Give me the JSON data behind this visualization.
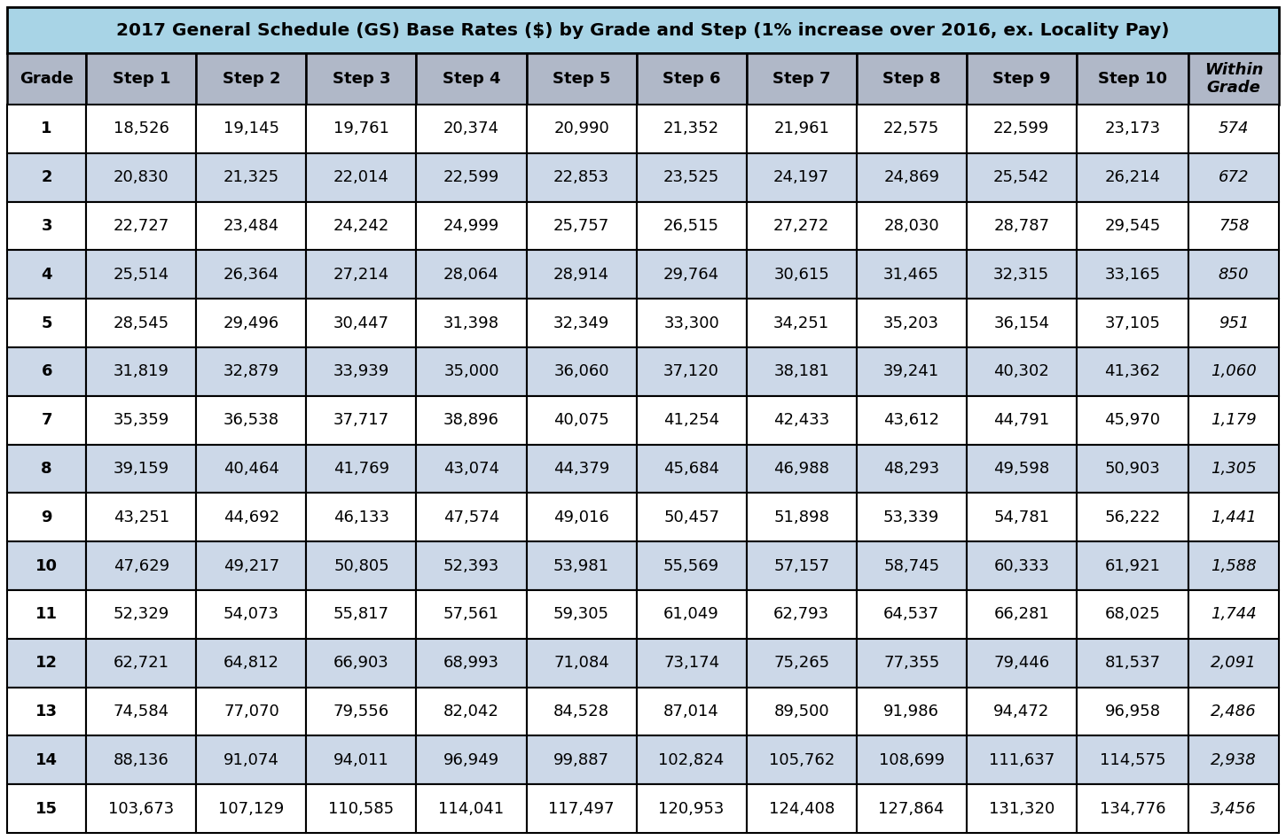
{
  "title": "2017 General Schedule (GS) Base Rates ($) by Grade and Step (1% increase over 2016, ex. Locality Pay)",
  "headers": [
    "Grade",
    "Step 1",
    "Step 2",
    "Step 3",
    "Step 4",
    "Step 5",
    "Step 6",
    "Step 7",
    "Step 8",
    "Step 9",
    "Step 10",
    "Within\nGrade"
  ],
  "rows": [
    [
      1,
      18526,
      19145,
      19761,
      20374,
      20990,
      21352,
      21961,
      22575,
      22599,
      23173,
      574
    ],
    [
      2,
      20830,
      21325,
      22014,
      22599,
      22853,
      23525,
      24197,
      24869,
      25542,
      26214,
      672
    ],
    [
      3,
      22727,
      23484,
      24242,
      24999,
      25757,
      26515,
      27272,
      28030,
      28787,
      29545,
      758
    ],
    [
      4,
      25514,
      26364,
      27214,
      28064,
      28914,
      29764,
      30615,
      31465,
      32315,
      33165,
      850
    ],
    [
      5,
      28545,
      29496,
      30447,
      31398,
      32349,
      33300,
      34251,
      35203,
      36154,
      37105,
      951
    ],
    [
      6,
      31819,
      32879,
      33939,
      35000,
      36060,
      37120,
      38181,
      39241,
      40302,
      41362,
      1060
    ],
    [
      7,
      35359,
      36538,
      37717,
      38896,
      40075,
      41254,
      42433,
      43612,
      44791,
      45970,
      1179
    ],
    [
      8,
      39159,
      40464,
      41769,
      43074,
      44379,
      45684,
      46988,
      48293,
      49598,
      50903,
      1305
    ],
    [
      9,
      43251,
      44692,
      46133,
      47574,
      49016,
      50457,
      51898,
      53339,
      54781,
      56222,
      1441
    ],
    [
      10,
      47629,
      49217,
      50805,
      52393,
      53981,
      55569,
      57157,
      58745,
      60333,
      61921,
      1588
    ],
    [
      11,
      52329,
      54073,
      55817,
      57561,
      59305,
      61049,
      62793,
      64537,
      66281,
      68025,
      1744
    ],
    [
      12,
      62721,
      64812,
      66903,
      68993,
      71084,
      73174,
      75265,
      77355,
      79446,
      81537,
      2091
    ],
    [
      13,
      74584,
      77070,
      79556,
      82042,
      84528,
      87014,
      89500,
      91986,
      94472,
      96958,
      2486
    ],
    [
      14,
      88136,
      91074,
      94011,
      96949,
      99887,
      102824,
      105762,
      108699,
      111637,
      114575,
      2938
    ],
    [
      15,
      103673,
      107129,
      110585,
      114041,
      117497,
      120953,
      124408,
      127864,
      131320,
      134776,
      3456
    ]
  ],
  "title_bg": "#a8d4e6",
  "header_bg": "#b0b8c8",
  "row_bg_odd": "#ffffff",
  "row_bg_even": "#ccd8e8",
  "border_color": "#000000",
  "title_font_size": 14.5,
  "header_font_size": 13,
  "data_font_size": 13,
  "col_weights": [
    0.72,
    1.0,
    1.0,
    1.0,
    1.0,
    1.0,
    1.0,
    1.0,
    1.0,
    1.0,
    1.02,
    0.82
  ]
}
